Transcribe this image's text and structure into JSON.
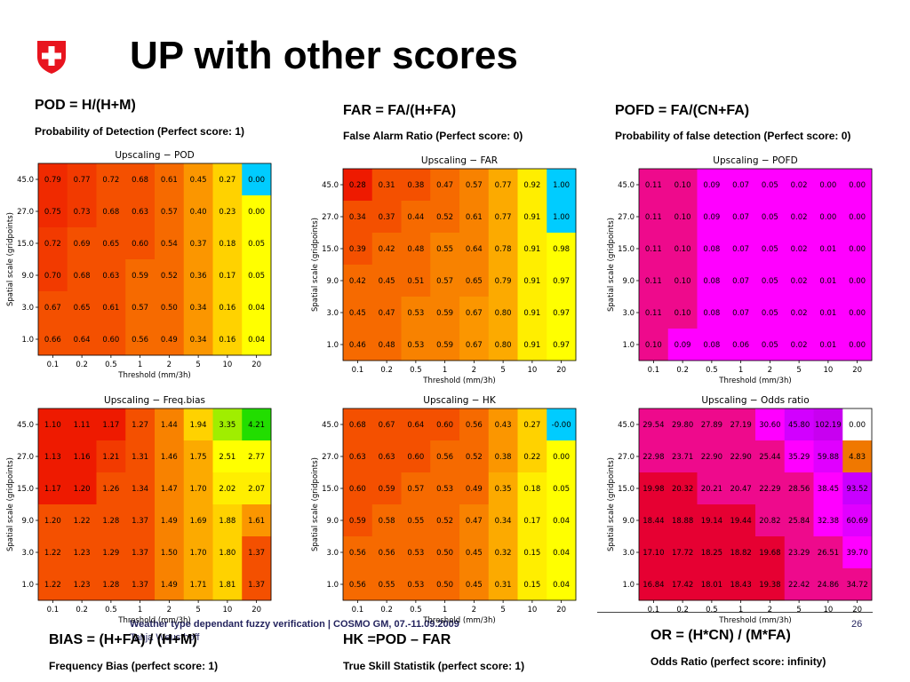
{
  "slide": {
    "title": "UP with other scores",
    "footer_title": "Weather type dependant fuzzy verification | COSMO GM, 07.-11.09.2009",
    "footer_author": "Tanja Weusthoff",
    "page_number": "26"
  },
  "colors": {
    "swiss_red": "#e8141e",
    "footer_text": "#24245e"
  },
  "descriptions": [
    {
      "id": "pod",
      "formula": "POD = H/(H+M)",
      "text": "Probability of Detection (Perfect score: 1)"
    },
    {
      "id": "far",
      "formula": "FAR = FA/(H+FA)",
      "text": "False Alarm Ratio (Perfect score: 0)"
    },
    {
      "id": "pofd",
      "formula": "POFD = FA/(CN+FA)",
      "text": "Probability of false detection (Perfect score: 0)"
    },
    {
      "id": "bias",
      "formula": "BIAS = (H+FA) / (H+M)",
      "text": "Frequency Bias (perfect score: 1)"
    },
    {
      "id": "hk",
      "formula": "HK =POD – FAR",
      "text": "True Skill Statistik (perfect score: 1)"
    },
    {
      "id": "or",
      "formula": "OR = (H*CN) / (M*FA)",
      "text": "Odds Ratio (perfect score: infinity)"
    }
  ],
  "chart_data": [
    {
      "id": "pod",
      "type": "heatmap",
      "title": "Upscaling − POD",
      "xlabel": "Threshold (mm/3h)",
      "ylabel": "Spatial scale (gridpoints)",
      "x": [
        "0.1",
        "0.2",
        "0.5",
        "1",
        "2",
        "5",
        "10",
        "20"
      ],
      "y": [
        "45.0",
        "27.0",
        "15.0",
        "9.0",
        "3.0",
        "1.0"
      ],
      "values": [
        [
          "0.79",
          "0.77",
          "0.72",
          "0.68",
          "0.61",
          "0.45",
          "0.27",
          "0.00"
        ],
        [
          "0.75",
          "0.73",
          "0.68",
          "0.63",
          "0.57",
          "0.40",
          "0.23",
          "0.00"
        ],
        [
          "0.72",
          "0.69",
          "0.65",
          "0.60",
          "0.54",
          "0.37",
          "0.18",
          "0.05"
        ],
        [
          "0.70",
          "0.68",
          "0.63",
          "0.59",
          "0.52",
          "0.36",
          "0.17",
          "0.05"
        ],
        [
          "0.67",
          "0.65",
          "0.61",
          "0.57",
          "0.50",
          "0.34",
          "0.16",
          "0.04"
        ],
        [
          "0.66",
          "0.64",
          "0.60",
          "0.56",
          "0.49",
          "0.34",
          "0.16",
          "0.04"
        ]
      ],
      "colors": [
        [
          "#f02a00",
          "#f23a00",
          "#f45000",
          "#f45000",
          "#f66a00",
          "#fb9600",
          "#ffd200",
          "#00ccff"
        ],
        [
          "#f02a00",
          "#f23a00",
          "#f45000",
          "#f45000",
          "#f66a00",
          "#fb9600",
          "#ffd200",
          "#ffff00"
        ],
        [
          "#f23a00",
          "#f45000",
          "#f45000",
          "#f45000",
          "#f66a00",
          "#fb9600",
          "#ffd200",
          "#ffff00"
        ],
        [
          "#f23a00",
          "#f45000",
          "#f45000",
          "#f66a00",
          "#f66a00",
          "#fb9600",
          "#ffd200",
          "#ffff00"
        ],
        [
          "#f45000",
          "#f45000",
          "#f45000",
          "#f66a00",
          "#f66a00",
          "#fb9600",
          "#ffd200",
          "#ffff00"
        ],
        [
          "#f45000",
          "#f45000",
          "#f45000",
          "#f66a00",
          "#f66a00",
          "#fb9600",
          "#ffd200",
          "#ffff00"
        ]
      ]
    },
    {
      "id": "far",
      "type": "heatmap",
      "title": "Upscaling − FAR",
      "xlabel": "Threshold (mm/3h)",
      "ylabel": "Spatial scale (gridpoints)",
      "x": [
        "0.1",
        "0.2",
        "0.5",
        "1",
        "2",
        "5",
        "10",
        "20"
      ],
      "y": [
        "45.0",
        "27.0",
        "15.0",
        "9.0",
        "3.0",
        "1.0"
      ],
      "values": [
        [
          "0.28",
          "0.31",
          "0.38",
          "0.47",
          "0.57",
          "0.77",
          "0.92",
          "1.00"
        ],
        [
          "0.34",
          "0.37",
          "0.44",
          "0.52",
          "0.61",
          "0.77",
          "0.91",
          "1.00"
        ],
        [
          "0.39",
          "0.42",
          "0.48",
          "0.55",
          "0.64",
          "0.78",
          "0.91",
          "0.98"
        ],
        [
          "0.42",
          "0.45",
          "0.51",
          "0.57",
          "0.65",
          "0.79",
          "0.91",
          "0.97"
        ],
        [
          "0.45",
          "0.47",
          "0.53",
          "0.59",
          "0.67",
          "0.80",
          "0.91",
          "0.97"
        ],
        [
          "0.46",
          "0.48",
          "0.53",
          "0.59",
          "0.67",
          "0.80",
          "0.91",
          "0.97"
        ]
      ],
      "colors": [
        [
          "#ee1a00",
          "#f45000",
          "#f45000",
          "#f66a00",
          "#f88200",
          "#fcaa00",
          "#ffee00",
          "#00ccff"
        ],
        [
          "#f45000",
          "#f45000",
          "#f66a00",
          "#f66a00",
          "#f88200",
          "#fcaa00",
          "#ffee00",
          "#00ccff"
        ],
        [
          "#f45000",
          "#f66a00",
          "#f66a00",
          "#f88200",
          "#f88200",
          "#fcaa00",
          "#ffee00",
          "#ffff00"
        ],
        [
          "#f66a00",
          "#f66a00",
          "#f66a00",
          "#f88200",
          "#f88200",
          "#fcaa00",
          "#ffee00",
          "#ffff00"
        ],
        [
          "#f66a00",
          "#f66a00",
          "#f88200",
          "#f88200",
          "#fb9600",
          "#fcaa00",
          "#ffee00",
          "#ffff00"
        ],
        [
          "#f66a00",
          "#f66a00",
          "#f88200",
          "#f88200",
          "#fb9600",
          "#fcaa00",
          "#ffee00",
          "#ffff00"
        ]
      ]
    },
    {
      "id": "pofd",
      "type": "heatmap",
      "title": "Upscaling − POFD",
      "xlabel": "Threshold (mm/3h)",
      "ylabel": "Spatial scale (gridpoints)",
      "x": [
        "0.1",
        "0.2",
        "0.5",
        "1",
        "2",
        "5",
        "10",
        "20"
      ],
      "y": [
        "45.0",
        "27.0",
        "15.0",
        "9.0",
        "3.0",
        "1.0"
      ],
      "values": [
        [
          "0.11",
          "0.10",
          "0.09",
          "0.07",
          "0.05",
          "0.02",
          "0.00",
          "0.00"
        ],
        [
          "0.11",
          "0.10",
          "0.09",
          "0.07",
          "0.05",
          "0.02",
          "0.00",
          "0.00"
        ],
        [
          "0.11",
          "0.10",
          "0.08",
          "0.07",
          "0.05",
          "0.02",
          "0.01",
          "0.00"
        ],
        [
          "0.11",
          "0.10",
          "0.08",
          "0.07",
          "0.05",
          "0.02",
          "0.01",
          "0.00"
        ],
        [
          "0.11",
          "0.10",
          "0.08",
          "0.07",
          "0.05",
          "0.02",
          "0.01",
          "0.00"
        ],
        [
          "0.10",
          "0.09",
          "0.08",
          "0.06",
          "0.05",
          "0.02",
          "0.01",
          "0.00"
        ]
      ],
      "colors": [
        [
          "#ee0a8c",
          "#ee0a8c",
          "#ff00ff",
          "#ff00ff",
          "#ff00ff",
          "#ff00ff",
          "#ff00ff",
          "#ff00ff"
        ],
        [
          "#ee0a8c",
          "#ee0a8c",
          "#ff00ff",
          "#ff00ff",
          "#ff00ff",
          "#ff00ff",
          "#ff00ff",
          "#ff00ff"
        ],
        [
          "#ee0a8c",
          "#ee0a8c",
          "#ff00ff",
          "#ff00ff",
          "#ff00ff",
          "#ff00ff",
          "#ff00ff",
          "#ff00ff"
        ],
        [
          "#ee0a8c",
          "#ee0a8c",
          "#ff00ff",
          "#ff00ff",
          "#ff00ff",
          "#ff00ff",
          "#ff00ff",
          "#ff00ff"
        ],
        [
          "#ee0a8c",
          "#ee0a8c",
          "#ff00ff",
          "#ff00ff",
          "#ff00ff",
          "#ff00ff",
          "#ff00ff",
          "#ff00ff"
        ],
        [
          "#ee0a8c",
          "#ff00ff",
          "#ff00ff",
          "#ff00ff",
          "#ff00ff",
          "#ff00ff",
          "#ff00ff",
          "#ff00ff"
        ]
      ]
    },
    {
      "id": "bias",
      "type": "heatmap",
      "title": "Upscaling − Freq.bias",
      "xlabel": "Threshold (mm/3h)",
      "ylabel": "Spatial scale (gridpoints)",
      "x": [
        "0.1",
        "0.2",
        "0.5",
        "1",
        "2",
        "5",
        "10",
        "20"
      ],
      "y": [
        "45.0",
        "27.0",
        "15.0",
        "9.0",
        "3.0",
        "1.0"
      ],
      "values": [
        [
          "1.10",
          "1.11",
          "1.17",
          "1.27",
          "1.44",
          "1.94",
          "3.35",
          "4.21"
        ],
        [
          "1.13",
          "1.16",
          "1.21",
          "1.31",
          "1.46",
          "1.75",
          "2.51",
          "2.77"
        ],
        [
          "1.17",
          "1.20",
          "1.26",
          "1.34",
          "1.47",
          "1.70",
          "2.02",
          "2.07"
        ],
        [
          "1.20",
          "1.22",
          "1.28",
          "1.37",
          "1.49",
          "1.69",
          "1.88",
          "1.61"
        ],
        [
          "1.22",
          "1.23",
          "1.29",
          "1.37",
          "1.50",
          "1.70",
          "1.80",
          "1.37"
        ],
        [
          "1.22",
          "1.23",
          "1.28",
          "1.37",
          "1.49",
          "1.71",
          "1.81",
          "1.37"
        ]
      ],
      "colors": [
        [
          "#ee1a00",
          "#ee1a00",
          "#ee1a00",
          "#f45000",
          "#f88200",
          "#ffd200",
          "#a0ee00",
          "#22dd00"
        ],
        [
          "#ee1a00",
          "#ee1a00",
          "#f23a00",
          "#f45000",
          "#f88200",
          "#fcaa00",
          "#ffff00",
          "#ffff00"
        ],
        [
          "#ee1a00",
          "#ee1a00",
          "#f45000",
          "#f45000",
          "#f88200",
          "#fcaa00",
          "#ffee00",
          "#ffee00"
        ],
        [
          "#f45000",
          "#f45000",
          "#f45000",
          "#f45000",
          "#f88200",
          "#fcaa00",
          "#ffd200",
          "#fb9600"
        ],
        [
          "#f45000",
          "#f45000",
          "#f45000",
          "#f45000",
          "#f88200",
          "#fcaa00",
          "#ffd200",
          "#f45000"
        ],
        [
          "#f45000",
          "#f45000",
          "#f45000",
          "#f45000",
          "#f88200",
          "#fcaa00",
          "#ffd200",
          "#f45000"
        ]
      ]
    },
    {
      "id": "hk",
      "type": "heatmap",
      "title": "Upscaling − HK",
      "xlabel": "Threshold (mm/3h)",
      "ylabel": "Spatial scale (gridpoints)",
      "x": [
        "0.1",
        "0.2",
        "0.5",
        "1",
        "2",
        "5",
        "10",
        "20"
      ],
      "y": [
        "45.0",
        "27.0",
        "15.0",
        "9.0",
        "3.0",
        "1.0"
      ],
      "values": [
        [
          "0.68",
          "0.67",
          "0.64",
          "0.60",
          "0.56",
          "0.43",
          "0.27",
          "-0.00"
        ],
        [
          "0.63",
          "0.63",
          "0.60",
          "0.56",
          "0.52",
          "0.38",
          "0.22",
          "0.00"
        ],
        [
          "0.60",
          "0.59",
          "0.57",
          "0.53",
          "0.49",
          "0.35",
          "0.18",
          "0.05"
        ],
        [
          "0.59",
          "0.58",
          "0.55",
          "0.52",
          "0.47",
          "0.34",
          "0.17",
          "0.04"
        ],
        [
          "0.56",
          "0.56",
          "0.53",
          "0.50",
          "0.45",
          "0.32",
          "0.15",
          "0.04"
        ],
        [
          "0.56",
          "0.55",
          "0.53",
          "0.50",
          "0.45",
          "0.31",
          "0.15",
          "0.04"
        ]
      ],
      "colors": [
        [
          "#f45000",
          "#f45000",
          "#f45000",
          "#f45000",
          "#f66a00",
          "#fb9600",
          "#ffd200",
          "#00ccff"
        ],
        [
          "#f45000",
          "#f45000",
          "#f45000",
          "#f66a00",
          "#f66a00",
          "#fb9600",
          "#ffd200",
          "#ffff00"
        ],
        [
          "#f45000",
          "#f45000",
          "#f66a00",
          "#f66a00",
          "#f66a00",
          "#fcaa00",
          "#ffee00",
          "#ffff00"
        ],
        [
          "#f45000",
          "#f66a00",
          "#f66a00",
          "#f66a00",
          "#f88200",
          "#fcaa00",
          "#ffee00",
          "#ffff00"
        ],
        [
          "#f66a00",
          "#f66a00",
          "#f66a00",
          "#f66a00",
          "#f88200",
          "#fcaa00",
          "#ffee00",
          "#ffff00"
        ],
        [
          "#f66a00",
          "#f66a00",
          "#f66a00",
          "#f66a00",
          "#f88200",
          "#fcaa00",
          "#ffee00",
          "#ffff00"
        ]
      ]
    },
    {
      "id": "or",
      "type": "heatmap",
      "title": "Upscaling − Odds ratio",
      "xlabel": "Threshold (mm/3h)",
      "ylabel": "Spatial scale (gridpoints)",
      "x": [
        "0.1",
        "0.2",
        "0.5",
        "1",
        "2",
        "5",
        "10",
        "20"
      ],
      "y": [
        "45.0",
        "27.0",
        "15.0",
        "9.0",
        "3.0",
        "1.0"
      ],
      "values": [
        [
          "29.54",
          "29.80",
          "27.89",
          "27.19",
          "30.60",
          "45.80",
          "102.19",
          "0.00"
        ],
        [
          "22.98",
          "23.71",
          "22.90",
          "22.90",
          "25.44",
          "35.29",
          "59.88",
          "4.83"
        ],
        [
          "19.98",
          "20.32",
          "20.21",
          "20.47",
          "22.29",
          "28.56",
          "38.45",
          "93.52"
        ],
        [
          "18.44",
          "18.88",
          "19.14",
          "19.44",
          "20.82",
          "25.84",
          "32.38",
          "60.69"
        ],
        [
          "17.10",
          "17.72",
          "18.25",
          "18.82",
          "19.68",
          "23.29",
          "26.51",
          "39.70"
        ],
        [
          "16.84",
          "17.42",
          "18.01",
          "18.43",
          "19.38",
          "22.42",
          "24.86",
          "34.72"
        ]
      ],
      "colors": [
        [
          "#ee0a8c",
          "#ee0a8c",
          "#ee0a8c",
          "#ee0a8c",
          "#ff00ff",
          "#d200ff",
          "#c800f0",
          "#ffffff"
        ],
        [
          "#ee0a8c",
          "#ee0a8c",
          "#ee0a8c",
          "#ee0a8c",
          "#ee0a8c",
          "#ff00ff",
          "#e000ff",
          "#f07800"
        ],
        [
          "#e60032",
          "#e60032",
          "#ee0a8c",
          "#ee0a8c",
          "#ee0a8c",
          "#ee0a8c",
          "#ff00ff",
          "#c800ff"
        ],
        [
          "#e60032",
          "#e60032",
          "#e60032",
          "#e60032",
          "#ee0a8c",
          "#ee0a8c",
          "#ff00ff",
          "#e000ff"
        ],
        [
          "#e60032",
          "#e60032",
          "#e60032",
          "#e60032",
          "#e60032",
          "#ee0a8c",
          "#ee0a8c",
          "#ff00ff"
        ],
        [
          "#e60032",
          "#e60032",
          "#e60032",
          "#e60032",
          "#e60032",
          "#ee0a8c",
          "#ee0a8c",
          "#ee0a8c"
        ]
      ]
    }
  ]
}
